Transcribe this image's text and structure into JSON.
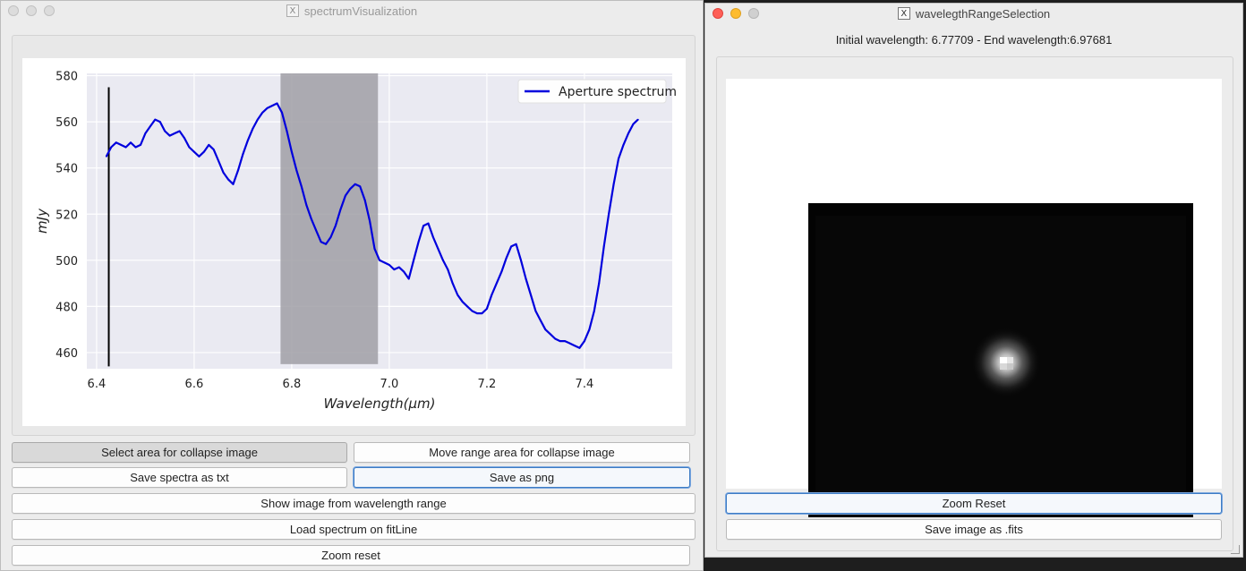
{
  "left_window": {
    "title": "spectrumVisualization",
    "buttons": {
      "select_area": "Select area for collapse image",
      "move_range": "Move range area for collapse image",
      "save_txt": "Save spectra as txt",
      "save_png": "Save as png",
      "show_image": "Show image from wavelength range",
      "load_fitline": "Load spectrum on fitLine",
      "zoom_reset": "Zoom reset"
    }
  },
  "right_window": {
    "title": "wavelegthRangeSelection",
    "info": "Initial wavelength: 6.77709 - End wavelength:6.97681",
    "buttons": {
      "zoom_reset": "Zoom Reset",
      "save_fits": "Save image as .fits"
    }
  },
  "icons": {
    "x11": "X11-icon",
    "close": "close-icon",
    "minimize": "minimize-icon",
    "zoom": "zoom-icon"
  },
  "colors": {
    "series": "#0000dd",
    "selection": "#a09fa6",
    "plot_bg": "#eaeaf2",
    "marker": "#000000"
  },
  "chart_data": {
    "type": "line",
    "xlabel": "Wavelength(μm)",
    "ylabel": "mJy",
    "xlim": [
      6.38,
      7.58
    ],
    "ylim": [
      453,
      581
    ],
    "xticks": [
      6.4,
      6.6,
      6.8,
      7.0,
      7.2,
      7.4
    ],
    "xtick_labels": [
      "6.4",
      "6.6",
      "6.8",
      "7.0",
      "7.2",
      "7.4"
    ],
    "yticks": [
      460,
      480,
      500,
      520,
      540,
      560,
      580
    ],
    "ytick_labels": [
      "460",
      "480",
      "500",
      "520",
      "540",
      "560",
      "580"
    ],
    "grid": true,
    "legend": "top-right",
    "series": [
      {
        "name": "Aperture spectrum",
        "x": [
          6.42,
          6.43,
          6.44,
          6.45,
          6.46,
          6.47,
          6.48,
          6.49,
          6.5,
          6.51,
          6.52,
          6.53,
          6.54,
          6.55,
          6.56,
          6.57,
          6.58,
          6.59,
          6.6,
          6.61,
          6.62,
          6.63,
          6.64,
          6.65,
          6.66,
          6.67,
          6.68,
          6.69,
          6.7,
          6.71,
          6.72,
          6.73,
          6.74,
          6.75,
          6.76,
          6.77,
          6.78,
          6.79,
          6.8,
          6.81,
          6.82,
          6.83,
          6.84,
          6.85,
          6.86,
          6.87,
          6.88,
          6.89,
          6.9,
          6.91,
          6.92,
          6.93,
          6.94,
          6.95,
          6.96,
          6.97,
          6.98,
          6.99,
          7.0,
          7.01,
          7.02,
          7.03,
          7.04,
          7.05,
          7.06,
          7.07,
          7.08,
          7.09,
          7.1,
          7.11,
          7.12,
          7.13,
          7.14,
          7.15,
          7.16,
          7.17,
          7.18,
          7.19,
          7.2,
          7.21,
          7.22,
          7.23,
          7.24,
          7.25,
          7.26,
          7.27,
          7.28,
          7.29,
          7.3,
          7.31,
          7.32,
          7.33,
          7.34,
          7.35,
          7.36,
          7.37,
          7.38,
          7.39,
          7.4,
          7.41,
          7.42,
          7.43,
          7.44,
          7.45,
          7.46,
          7.47,
          7.48,
          7.49,
          7.5,
          7.51
        ],
        "values": [
          545,
          549,
          551,
          550,
          549,
          551,
          549,
          550,
          555,
          558,
          561,
          560,
          556,
          554,
          555,
          556,
          553,
          549,
          547,
          545,
          547,
          550,
          548,
          543,
          538,
          535,
          533,
          539,
          546,
          552,
          557,
          561,
          564,
          566,
          567,
          568,
          564,
          556,
          547,
          539,
          532,
          524,
          518,
          513,
          508,
          507,
          510,
          515,
          522,
          528,
          531,
          533,
          532,
          526,
          517,
          505,
          500,
          499,
          498,
          496,
          497,
          495,
          492,
          500,
          508,
          515,
          516,
          510,
          505,
          500,
          496,
          490,
          485,
          482,
          480,
          478,
          477,
          477,
          479,
          485,
          490,
          495,
          501,
          506,
          507,
          500,
          492,
          485,
          478,
          474,
          470,
          468,
          466,
          465,
          465,
          464,
          463,
          462,
          465,
          470,
          478,
          490,
          506,
          520,
          533,
          544,
          550,
          555,
          559,
          561
        ]
      }
    ],
    "selection_band": [
      6.77709,
      6.97681
    ],
    "marker_line": {
      "x": 6.425,
      "y_from": 454,
      "y_to": 575
    }
  }
}
